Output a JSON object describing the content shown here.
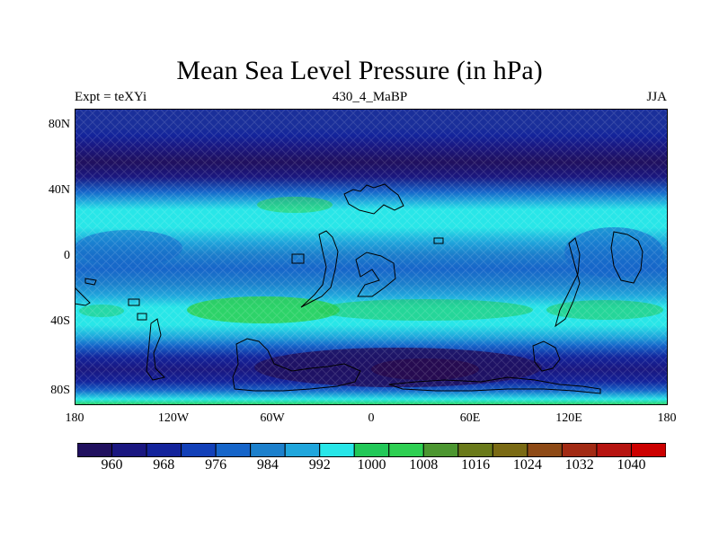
{
  "map": {
    "title": "Mean Sea Level Pressure (in hPa)",
    "left_string": "Expt = teXYi",
    "center_string": "430_4_MaBP",
    "right_string": "JJA",
    "lat_ticks": [
      "80N",
      "40N",
      "0",
      "40S",
      "80S"
    ],
    "lon_ticks": [
      "180",
      "120W",
      "60W",
      "0",
      "60E",
      "120E",
      "180"
    ],
    "colorbar_labels": [
      "960",
      "968",
      "976",
      "984",
      "992",
      "1000",
      "1008",
      "1016",
      "1024",
      "1032",
      "1040"
    ],
    "colorbar_colors": [
      "#20105e",
      "#1a1780",
      "#13239b",
      "#1240b8",
      "#1665c9",
      "#1c80cc",
      "#20a6dc",
      "#28e6e8",
      "#22c858",
      "#2ecf52",
      "#4c9630",
      "#6a7a1a",
      "#7a6a14",
      "#8e4a16",
      "#a22a14",
      "#b61410",
      "#cc0000"
    ]
  }
}
